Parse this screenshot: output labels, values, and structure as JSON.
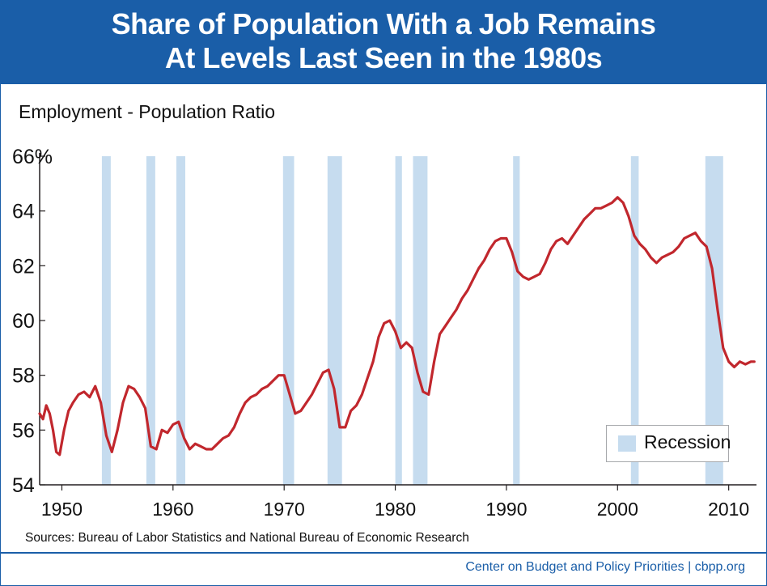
{
  "title_line1": "Share of Population With a Job Remains",
  "title_line2": "At Levels Last Seen in the 1980s",
  "sources": "Sources: Bureau of Labor Statistics and National Bureau of Economic Research",
  "credit": "Center on Budget and Policy Priorities | cbpp.org",
  "colors": {
    "banner": "#1a5ea8",
    "line": "#c1272d",
    "recession": "#c6dcef",
    "credit": "#1a5ea8"
  },
  "chart_data": {
    "type": "line",
    "ylabel": "Employment - Population Ratio",
    "xlim": [
      1948,
      2012.5
    ],
    "ylim": [
      54,
      66
    ],
    "y_ticks": [
      54,
      56,
      58,
      60,
      62,
      64,
      66
    ],
    "y_tick_labels": [
      "54",
      "56",
      "58",
      "60",
      "62",
      "64",
      "66%"
    ],
    "x_ticks": [
      1950,
      1960,
      1970,
      1980,
      1990,
      2000,
      2010
    ],
    "x_tick_labels": [
      "1950",
      "1960",
      "1970",
      "1980",
      "1990",
      "2000",
      "2010"
    ],
    "grid": false,
    "legend_position": "bottom-right",
    "legend": [
      "Recession"
    ],
    "recessions": [
      [
        1953.6,
        1954.4
      ],
      [
        1957.6,
        1958.4
      ],
      [
        1960.3,
        1961.1
      ],
      [
        1969.9,
        1970.9
      ],
      [
        1973.9,
        1975.2
      ],
      [
        1980.0,
        1980.6
      ],
      [
        1981.6,
        1982.9
      ],
      [
        1990.6,
        1991.2
      ],
      [
        2001.2,
        2001.9
      ],
      [
        2007.9,
        2009.5
      ]
    ],
    "series": [
      {
        "x": [
          1948.0,
          1948.3,
          1948.6,
          1948.9,
          1949.2,
          1949.5,
          1949.8,
          1950.2,
          1950.6,
          1951.0,
          1951.5,
          1952.0,
          1952.5,
          1953.0,
          1953.5,
          1954.0,
          1954.5,
          1955.0,
          1955.5,
          1956.0,
          1956.5,
          1957.0,
          1957.5,
          1958.0,
          1958.5,
          1959.0,
          1959.5,
          1960.0,
          1960.5,
          1961.0,
          1961.5,
          1962.0,
          1962.5,
          1963.0,
          1963.5,
          1964.0,
          1964.5,
          1965.0,
          1965.5,
          1966.0,
          1966.5,
          1967.0,
          1967.5,
          1968.0,
          1968.5,
          1969.0,
          1969.5,
          1970.0,
          1970.5,
          1971.0,
          1971.5,
          1972.0,
          1972.5,
          1973.0,
          1973.5,
          1974.0,
          1974.5,
          1975.0,
          1975.5,
          1976.0,
          1976.5,
          1977.0,
          1977.5,
          1978.0,
          1978.5,
          1979.0,
          1979.5,
          1980.0,
          1980.5,
          1981.0,
          1981.5,
          1982.0,
          1982.5,
          1983.0,
          1983.5,
          1984.0,
          1984.5,
          1985.0,
          1985.5,
          1986.0,
          1986.5,
          1987.0,
          1987.5,
          1988.0,
          1988.5,
          1989.0,
          1989.5,
          1990.0,
          1990.5,
          1991.0,
          1991.5,
          1992.0,
          1992.5,
          1993.0,
          1993.5,
          1994.0,
          1994.5,
          1995.0,
          1995.5,
          1996.0,
          1996.5,
          1997.0,
          1997.5,
          1998.0,
          1998.5,
          1999.0,
          1999.5,
          2000.0,
          2000.5,
          2001.0,
          2001.5,
          2002.0,
          2002.5,
          2003.0,
          2003.5,
          2004.0,
          2004.5,
          2005.0,
          2005.5,
          2006.0,
          2006.5,
          2007.0,
          2007.5,
          2008.0,
          2008.5,
          2009.0,
          2009.5,
          2010.0,
          2010.5,
          2011.0,
          2011.5,
          2012.0,
          2012.3
        ],
        "y": [
          56.6,
          56.4,
          56.9,
          56.6,
          56.0,
          55.2,
          55.1,
          56.0,
          56.7,
          57.0,
          57.3,
          57.4,
          57.2,
          57.6,
          57.0,
          55.8,
          55.2,
          56.0,
          57.0,
          57.6,
          57.5,
          57.2,
          56.8,
          55.4,
          55.3,
          56.0,
          55.9,
          56.2,
          56.3,
          55.7,
          55.3,
          55.5,
          55.4,
          55.3,
          55.3,
          55.5,
          55.7,
          55.8,
          56.1,
          56.6,
          57.0,
          57.2,
          57.3,
          57.5,
          57.6,
          57.8,
          58.0,
          58.0,
          57.3,
          56.6,
          56.7,
          57.0,
          57.3,
          57.7,
          58.1,
          58.2,
          57.5,
          56.1,
          56.1,
          56.7,
          56.9,
          57.3,
          57.9,
          58.5,
          59.4,
          59.9,
          60.0,
          59.6,
          59.0,
          59.2,
          59.0,
          58.1,
          57.4,
          57.3,
          58.5,
          59.5,
          59.8,
          60.1,
          60.4,
          60.8,
          61.1,
          61.5,
          61.9,
          62.2,
          62.6,
          62.9,
          63.0,
          63.0,
          62.5,
          61.8,
          61.6,
          61.5,
          61.6,
          61.7,
          62.1,
          62.6,
          62.9,
          63.0,
          62.8,
          63.1,
          63.4,
          63.7,
          63.9,
          64.1,
          64.1,
          64.2,
          64.3,
          64.5,
          64.3,
          63.8,
          63.1,
          62.8,
          62.6,
          62.3,
          62.1,
          62.3,
          62.4,
          62.5,
          62.7,
          63.0,
          63.1,
          63.2,
          62.9,
          62.7,
          61.9,
          60.4,
          59.0,
          58.5,
          58.3,
          58.5,
          58.4,
          58.5,
          58.5
        ]
      }
    ]
  }
}
